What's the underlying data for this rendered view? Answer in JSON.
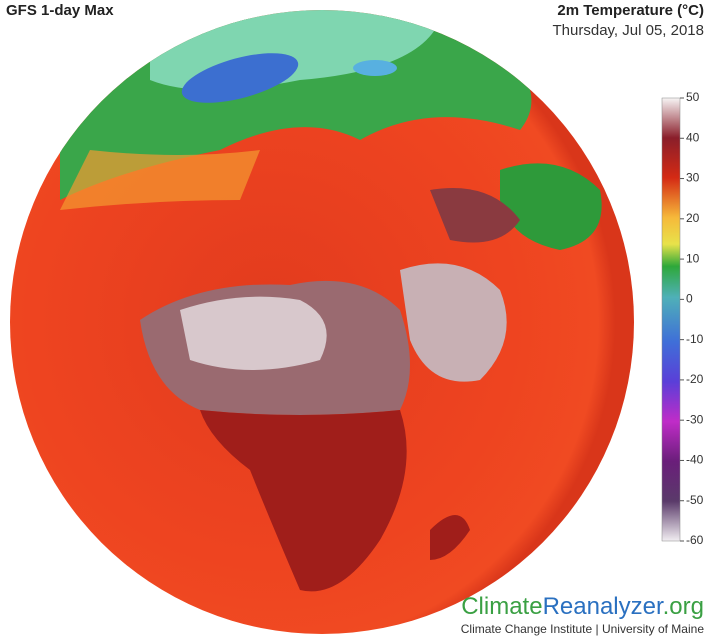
{
  "header": {
    "title": "GFS 1-day Max",
    "variable": "2m Temperature (°C)",
    "date": "Thursday, Jul 05, 2018"
  },
  "colorbar": {
    "ticks": [
      50,
      40,
      30,
      20,
      10,
      0,
      -10,
      -20,
      -30,
      -40,
      -50,
      -60
    ]
  },
  "footer": {
    "logo": [
      "Climate",
      "Reanalyzer",
      ".org"
    ],
    "credit": "Climate Change Institute | University of Maine"
  }
}
